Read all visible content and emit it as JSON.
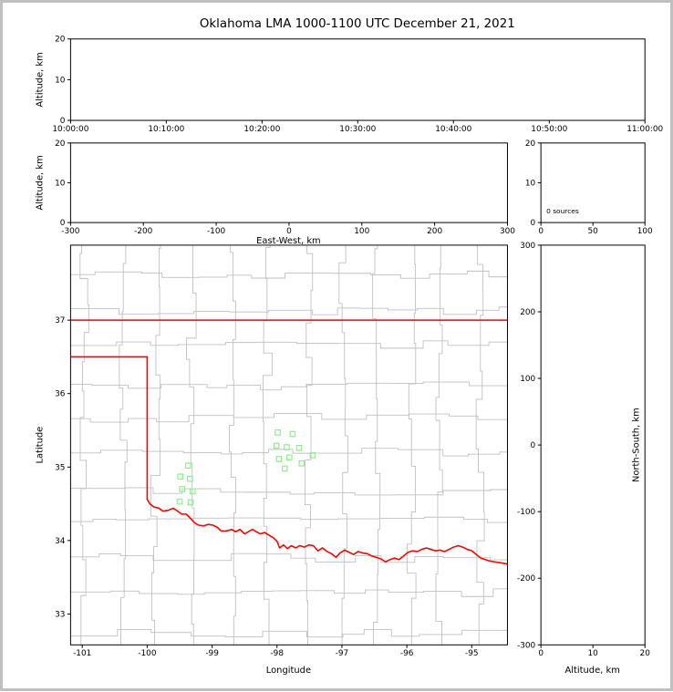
{
  "title": "Oklahoma LMA 1000-1100 UTC December 21, 2021",
  "colors": {
    "state_border": "#ff0000",
    "county_lines": "#c0c0c0",
    "stations": "#90ee90",
    "frame": "#000000",
    "outer_border": "#c0c0c0",
    "background": "#ffffff"
  },
  "chart_data": [
    {
      "id": "time-height",
      "type": "scatter",
      "ylabel": "Altitude, km",
      "xlim": [
        36000,
        39600
      ],
      "ylim": [
        0,
        20
      ],
      "xticks": [
        36000,
        36600,
        37200,
        37800,
        38400,
        39000,
        39600
      ],
      "xtick_labels": [
        "10:00:00",
        "10:10:00",
        "10:20:00",
        "10:30:00",
        "10:40:00",
        "10:50:00",
        "11:00:00"
      ],
      "yticks": [
        0,
        10,
        20
      ],
      "ytick_labels": [
        "0",
        "10",
        "20"
      ],
      "points": []
    },
    {
      "id": "east-west-height",
      "type": "scatter",
      "xlabel": "East-West, km",
      "ylabel": "Altitude, km",
      "xlim": [
        -300,
        300
      ],
      "ylim": [
        0,
        20
      ],
      "xticks": [
        -300,
        -200,
        -100,
        0,
        100,
        200,
        300
      ],
      "xtick_labels": [
        "-300",
        "-200",
        "-100",
        "0",
        "100",
        "200",
        "300"
      ],
      "yticks": [
        0,
        10,
        20
      ],
      "ytick_labels": [
        "0",
        "10",
        "20"
      ],
      "points": []
    },
    {
      "id": "altitude-histogram",
      "type": "line",
      "annotation": "0 sources",
      "xlim": [
        0,
        100
      ],
      "ylim": [
        0,
        20
      ],
      "xticks": [
        0,
        50,
        100
      ],
      "xtick_labels": [
        "0",
        "50",
        "100"
      ],
      "yticks": [
        0,
        10,
        20
      ],
      "ytick_labels": [
        "0",
        "10",
        "20"
      ],
      "points": []
    },
    {
      "id": "plan-view-map",
      "type": "scatter",
      "xlabel": "Longitude",
      "ylabel": "Latitude",
      "xlim": [
        -101.18,
        -94.45
      ],
      "ylim": [
        32.58,
        38.02
      ],
      "xticks": [
        -101,
        -100,
        -99,
        -98,
        -97,
        -96,
        -95
      ],
      "xtick_labels": [
        "-101",
        "-100",
        "-99",
        "-98",
        "-97",
        "-96",
        "-95"
      ],
      "yticks": [
        33,
        34,
        35,
        36,
        37
      ],
      "ytick_labels": [
        "33",
        "34",
        "35",
        "36",
        "37"
      ],
      "stations": [
        [
          -99.37,
          35.02
        ],
        [
          -99.49,
          34.87
        ],
        [
          -99.34,
          34.84
        ],
        [
          -99.46,
          34.7
        ],
        [
          -99.3,
          34.67
        ],
        [
          -99.5,
          34.53
        ],
        [
          -99.33,
          34.52
        ],
        [
          -97.99,
          35.47
        ],
        [
          -97.76,
          35.45
        ],
        [
          -98.01,
          35.29
        ],
        [
          -97.85,
          35.27
        ],
        [
          -97.66,
          35.26
        ],
        [
          -97.97,
          35.11
        ],
        [
          -97.81,
          35.13
        ],
        [
          -97.88,
          34.98
        ],
        [
          -97.62,
          35.05
        ],
        [
          -97.45,
          35.16
        ]
      ],
      "state_border": {
        "north_lat": 37.0,
        "panhandle_lat": 36.5,
        "panhandle_east_lon": -100.0,
        "border_meets_river": [
          -100.0,
          34.56
        ]
      },
      "river": [
        [
          -100.0,
          34.56
        ],
        [
          -99.96,
          34.5
        ],
        [
          -99.9,
          34.46
        ],
        [
          -99.82,
          34.44
        ],
        [
          -99.76,
          34.4
        ],
        [
          -99.68,
          34.41
        ],
        [
          -99.6,
          34.44
        ],
        [
          -99.53,
          34.4
        ],
        [
          -99.47,
          34.36
        ],
        [
          -99.4,
          34.36
        ],
        [
          -99.33,
          34.3
        ],
        [
          -99.27,
          34.24
        ],
        [
          -99.21,
          34.21
        ],
        [
          -99.13,
          34.2
        ],
        [
          -99.06,
          34.22
        ],
        [
          -98.99,
          34.21
        ],
        [
          -98.92,
          34.18
        ],
        [
          -98.86,
          34.13
        ],
        [
          -98.78,
          34.13
        ],
        [
          -98.7,
          34.15
        ],
        [
          -98.64,
          34.12
        ],
        [
          -98.57,
          34.15
        ],
        [
          -98.5,
          34.09
        ],
        [
          -98.44,
          34.12
        ],
        [
          -98.38,
          34.15
        ],
        [
          -98.32,
          34.12
        ],
        [
          -98.26,
          34.09
        ],
        [
          -98.19,
          34.11
        ],
        [
          -98.12,
          34.07
        ],
        [
          -98.06,
          34.04
        ],
        [
          -98.0,
          33.99
        ],
        [
          -97.96,
          33.9
        ],
        [
          -97.9,
          33.94
        ],
        [
          -97.84,
          33.89
        ],
        [
          -97.78,
          33.93
        ],
        [
          -97.71,
          33.9
        ],
        [
          -97.65,
          33.93
        ],
        [
          -97.58,
          33.91
        ],
        [
          -97.51,
          33.94
        ],
        [
          -97.44,
          33.93
        ],
        [
          -97.37,
          33.86
        ],
        [
          -97.3,
          33.9
        ],
        [
          -97.23,
          33.85
        ],
        [
          -97.16,
          33.82
        ],
        [
          -97.09,
          33.77
        ],
        [
          -97.03,
          33.83
        ],
        [
          -96.96,
          33.87
        ],
        [
          -96.89,
          33.84
        ],
        [
          -96.82,
          33.81
        ],
        [
          -96.75,
          33.85
        ],
        [
          -96.68,
          33.83
        ],
        [
          -96.61,
          33.82
        ],
        [
          -96.54,
          33.79
        ],
        [
          -96.47,
          33.77
        ],
        [
          -96.4,
          33.75
        ],
        [
          -96.33,
          33.71
        ],
        [
          -96.26,
          33.74
        ],
        [
          -96.19,
          33.76
        ],
        [
          -96.12,
          33.74
        ],
        [
          -96.05,
          33.79
        ],
        [
          -95.98,
          33.84
        ],
        [
          -95.91,
          33.86
        ],
        [
          -95.84,
          33.85
        ],
        [
          -95.77,
          33.88
        ],
        [
          -95.7,
          33.9
        ],
        [
          -95.63,
          33.88
        ],
        [
          -95.56,
          33.86
        ],
        [
          -95.49,
          33.87
        ],
        [
          -95.42,
          33.85
        ],
        [
          -95.35,
          33.88
        ],
        [
          -95.28,
          33.91
        ],
        [
          -95.21,
          33.93
        ],
        [
          -95.14,
          33.91
        ],
        [
          -95.07,
          33.88
        ],
        [
          -95.0,
          33.86
        ],
        [
          -94.93,
          33.81
        ],
        [
          -94.86,
          33.76
        ],
        [
          -94.79,
          33.74
        ],
        [
          -94.72,
          33.72
        ],
        [
          -94.65,
          33.71
        ],
        [
          -94.58,
          33.7
        ],
        [
          -94.51,
          33.69
        ],
        [
          -94.45,
          33.68
        ]
      ]
    },
    {
      "id": "north-south-height",
      "type": "scatter",
      "xlabel": "Altitude, km",
      "ylabel": "North-South, km",
      "xlim": [
        0,
        20
      ],
      "ylim": [
        -300,
        300
      ],
      "xticks": [
        0,
        10,
        20
      ],
      "xtick_labels": [
        "0",
        "10",
        "20"
      ],
      "yticks": [
        300,
        200,
        100,
        0,
        -100,
        -200,
        -300
      ],
      "ytick_labels": [
        "300",
        "200",
        "100",
        "0",
        "-100",
        "-200",
        "-300"
      ],
      "points": []
    }
  ]
}
